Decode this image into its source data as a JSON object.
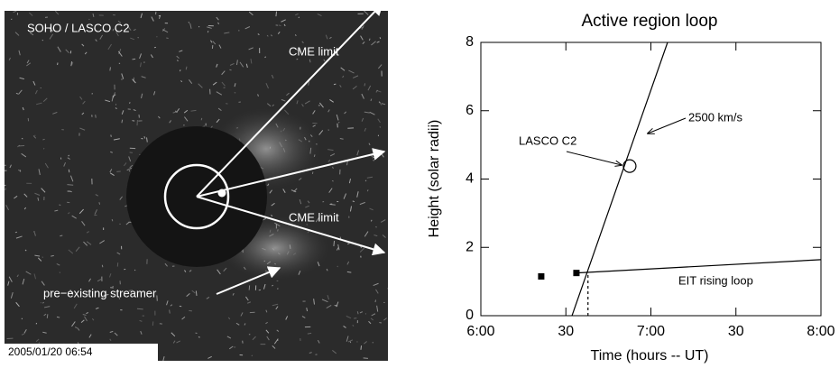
{
  "image": {
    "labels": [
      "SOHO / LASCO  C2",
      "CME limit",
      "CME limit",
      "pre−existing streamer"
    ],
    "timestamp": "2005/01/20  06:54"
  },
  "chart_data": {
    "type": "line",
    "title": "Active region loop",
    "x_label": "Time  (hours -- UT)",
    "y_label": "Height   (solar radii)",
    "xlim": [
      6,
      8
    ],
    "ylim": [
      0,
      8
    ],
    "xticks": [
      {
        "value": 6,
        "label": "6:00"
      },
      {
        "value": 6.5,
        "label": "30"
      },
      {
        "value": 7,
        "label": "7:00"
      },
      {
        "value": 7.5,
        "label": "30"
      },
      {
        "value": 8,
        "label": "8:00"
      }
    ],
    "yticks": [
      0,
      2,
      4,
      6,
      8
    ],
    "series": [
      {
        "color": "#000000",
        "x": [
          6.536,
          7.098
        ],
        "values": [
          0,
          8
        ],
        "marker": "none"
      },
      {
        "color": "#000000",
        "x": [
          6.562,
          8
        ],
        "values": [
          1.25,
          1.64
        ],
        "marker": "none"
      },
      {
        "color": "#000000",
        "x": [
          6.355,
          6.562
        ],
        "values": [
          1.15,
          1.25
        ],
        "marker": "square"
      },
      {
        "color": "#000000",
        "x": [
          6.875
        ],
        "values": [
          4.38
        ],
        "marker": "circle"
      },
      {
        "color": "#000000",
        "x": [
          6.63,
          6.63
        ],
        "values": [
          0,
          1.27
        ],
        "marker": "none",
        "dash": true
      }
    ],
    "annotations": [
      "2500 km/s",
      "LASCO  C2",
      "EIT rising loop"
    ]
  }
}
